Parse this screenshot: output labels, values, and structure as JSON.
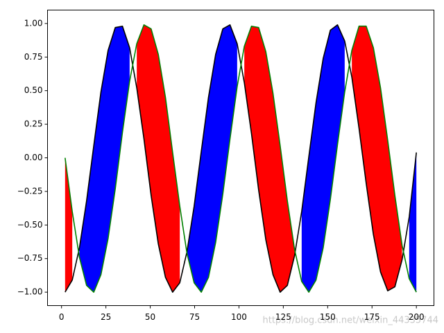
{
  "chart_data": {
    "type": "line",
    "x": [
      2,
      6.04,
      10.08,
      14.12,
      18.16,
      22.2,
      26.24,
      30.29,
      34.33,
      38.37,
      42.41,
      46.45,
      50.49,
      54.53,
      58.57,
      62.61,
      66.65,
      70.69,
      74.73,
      78.78,
      82.82,
      86.86,
      90.9,
      94.94,
      98.98,
      103.02,
      107.06,
      111.1,
      115.14,
      119.18,
      123.22,
      127.27,
      131.31,
      135.35,
      139.39,
      143.43,
      147.47,
      151.51,
      155.55,
      159.59,
      163.63,
      167.67,
      171.71,
      175.76,
      179.8,
      183.84,
      187.88,
      191.92,
      195.96,
      200
    ],
    "series": [
      {
        "color": "black",
        "values": [
          -1,
          -0.91,
          -0.67,
          -0.32,
          0.09,
          0.49,
          0.8,
          0.97,
          0.98,
          0.82,
          0.52,
          0.14,
          -0.28,
          -0.64,
          -0.89,
          -1,
          -0.93,
          -0.7,
          -0.36,
          0.05,
          0.45,
          0.77,
          0.96,
          0.99,
          0.85,
          0.56,
          0.18,
          -0.24,
          -0.61,
          -0.87,
          -1,
          -0.95,
          -0.73,
          -0.4,
          0.01,
          0.41,
          0.74,
          0.95,
          0.99,
          0.87,
          0.6,
          0.22,
          -0.19,
          -0.57,
          -0.85,
          -0.99,
          -0.96,
          -0.76,
          -0.44,
          0.04
        ]
      },
      {
        "color": "green",
        "values": [
          0,
          -0.4,
          -0.74,
          -0.95,
          -1,
          -0.87,
          -0.6,
          -0.23,
          0.19,
          0.57,
          0.85,
          0.99,
          0.96,
          0.77,
          0.45,
          0.04,
          -0.36,
          -0.71,
          -0.93,
          -1,
          -0.89,
          -0.63,
          -0.27,
          0.14,
          0.53,
          0.83,
          0.98,
          0.97,
          0.79,
          0.48,
          0.09,
          -0.32,
          -0.68,
          -0.92,
          -1,
          -0.91,
          -0.67,
          -0.31,
          0.1,
          0.49,
          0.8,
          0.98,
          0.98,
          0.82,
          0.52,
          0.13,
          -0.28,
          -0.65,
          -0.9,
          -1
        ]
      }
    ],
    "fill_between": {
      "above_color": "blue",
      "below_color": "red"
    },
    "xlim": [
      -7.9,
      209.9
    ],
    "xticks": [
      0,
      25,
      50,
      75,
      100,
      125,
      150,
      175,
      200
    ],
    "ylim": [
      -1.1,
      1.1
    ],
    "yticks": [
      {
        "value": -1,
        "label": "−1.00"
      },
      {
        "value": -0.75,
        "label": "−0.75"
      },
      {
        "value": -0.5,
        "label": "−0.50"
      },
      {
        "value": -0.25,
        "label": "−0.25"
      },
      {
        "value": 0,
        "label": "0.00"
      },
      {
        "value": 0.25,
        "label": "0.25"
      },
      {
        "value": 0.5,
        "label": "0.50"
      },
      {
        "value": 0.75,
        "label": "0.75"
      },
      {
        "value": 1,
        "label": "1.00"
      }
    ],
    "watermark": "https://blog.csdn.net/weixin_44335744"
  }
}
